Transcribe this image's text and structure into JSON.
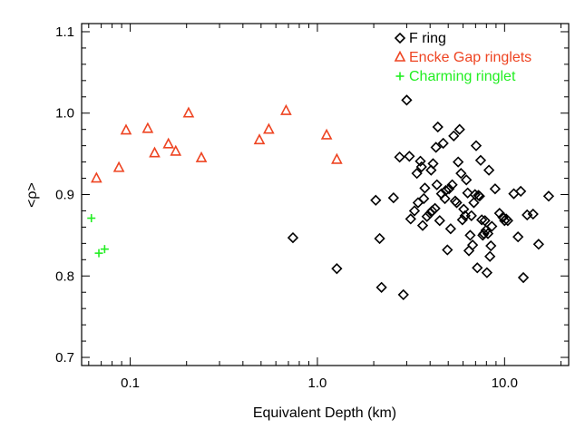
{
  "chart_data": {
    "type": "scatter",
    "xlabel": "Equivalent Depth (km)",
    "ylabel": "<ρ>",
    "xscale": "log",
    "xlim": [
      0.055,
      22
    ],
    "ylim": [
      0.69,
      1.11
    ],
    "xticks": [
      {
        "value": 0.1,
        "label": "0.1"
      },
      {
        "value": 1.0,
        "label": "1.0"
      },
      {
        "value": 10.0,
        "label": "10.0"
      }
    ],
    "yticks": [
      {
        "value": 0.7,
        "label": "0.7"
      },
      {
        "value": 0.8,
        "label": "0.8"
      },
      {
        "value": 0.9,
        "label": "0.9"
      },
      {
        "value": 1.0,
        "label": "1.0"
      },
      {
        "value": 1.1,
        "label": "1.1"
      }
    ],
    "legend_position": "top-right",
    "grid": false,
    "series": [
      {
        "name": "F ring",
        "marker": "diamond",
        "color": "#000000",
        "points": [
          [
            0.74,
            0.847
          ],
          [
            1.27,
            0.809
          ],
          [
            2.05,
            0.893
          ],
          [
            2.15,
            0.846
          ],
          [
            2.2,
            0.786
          ],
          [
            2.55,
            0.896
          ],
          [
            2.75,
            0.946
          ],
          [
            2.88,
            0.777
          ],
          [
            3.0,
            1.016
          ],
          [
            3.1,
            0.947
          ],
          [
            3.15,
            0.87
          ],
          [
            3.3,
            0.88
          ],
          [
            3.4,
            0.926
          ],
          [
            3.45,
            0.89
          ],
          [
            3.55,
            0.941
          ],
          [
            3.6,
            0.934
          ],
          [
            3.65,
            0.862
          ],
          [
            3.7,
            0.895
          ],
          [
            3.75,
            0.908
          ],
          [
            3.85,
            0.873
          ],
          [
            4.0,
            0.877
          ],
          [
            4.05,
            0.93
          ],
          [
            4.1,
            0.88
          ],
          [
            4.15,
            0.938
          ],
          [
            4.25,
            0.883
          ],
          [
            4.3,
            0.958
          ],
          [
            4.35,
            0.912
          ],
          [
            4.4,
            0.983
          ],
          [
            4.5,
            0.868
          ],
          [
            4.6,
            0.901
          ],
          [
            4.7,
            0.963
          ],
          [
            4.8,
            0.895
          ],
          [
            4.85,
            0.905
          ],
          [
            4.95,
            0.832
          ],
          [
            5.05,
            0.907
          ],
          [
            5.15,
            0.858
          ],
          [
            5.25,
            0.912
          ],
          [
            5.35,
            0.972
          ],
          [
            5.45,
            0.892
          ],
          [
            5.55,
            0.89
          ],
          [
            5.65,
            0.94
          ],
          [
            5.75,
            0.98
          ],
          [
            5.85,
            0.926
          ],
          [
            5.95,
            0.869
          ],
          [
            6.05,
            0.882
          ],
          [
            6.15,
            0.874
          ],
          [
            6.25,
            0.918
          ],
          [
            6.35,
            0.902
          ],
          [
            6.45,
            0.831
          ],
          [
            6.55,
            0.85
          ],
          [
            6.65,
            0.874
          ],
          [
            6.75,
            0.838
          ],
          [
            6.85,
            0.89
          ],
          [
            6.95,
            0.9
          ],
          [
            7.05,
            0.96
          ],
          [
            7.15,
            0.81
          ],
          [
            7.25,
            0.899
          ],
          [
            7.35,
            0.898
          ],
          [
            7.45,
            0.942
          ],
          [
            7.55,
            0.869
          ],
          [
            7.65,
            0.85
          ],
          [
            7.75,
            0.852
          ],
          [
            7.85,
            0.868
          ],
          [
            7.95,
            0.856
          ],
          [
            8.05,
            0.804
          ],
          [
            8.15,
            0.852
          ],
          [
            8.25,
            0.93
          ],
          [
            8.35,
            0.824
          ],
          [
            8.45,
            0.837
          ],
          [
            8.55,
            0.861
          ],
          [
            8.9,
            0.907
          ],
          [
            9.4,
            0.877
          ],
          [
            9.8,
            0.872
          ],
          [
            10.0,
            0.868
          ],
          [
            10.2,
            0.87
          ],
          [
            10.4,
            0.868
          ],
          [
            11.2,
            0.901
          ],
          [
            11.8,
            0.848
          ],
          [
            12.2,
            0.904
          ],
          [
            12.6,
            0.798
          ],
          [
            13.2,
            0.875
          ],
          [
            14.2,
            0.876
          ],
          [
            15.2,
            0.839
          ],
          [
            17.2,
            0.898
          ]
        ]
      },
      {
        "name": "Encke Gap ringlets",
        "marker": "triangle",
        "color": "#ee4422",
        "points": [
          [
            0.066,
            0.92
          ],
          [
            0.087,
            0.933
          ],
          [
            0.095,
            0.979
          ],
          [
            0.124,
            0.981
          ],
          [
            0.135,
            0.951
          ],
          [
            0.16,
            0.962
          ],
          [
            0.175,
            0.953
          ],
          [
            0.205,
            1.0
          ],
          [
            0.24,
            0.945
          ],
          [
            0.49,
            0.967
          ],
          [
            0.55,
            0.98
          ],
          [
            0.68,
            1.003
          ],
          [
            1.12,
            0.973
          ],
          [
            1.27,
            0.943
          ]
        ]
      },
      {
        "name": "Charming ringlet",
        "marker": "plus",
        "color": "#22ee22",
        "points": [
          [
            0.062,
            0.871
          ],
          [
            0.068,
            0.828
          ],
          [
            0.073,
            0.833
          ]
        ]
      }
    ]
  }
}
